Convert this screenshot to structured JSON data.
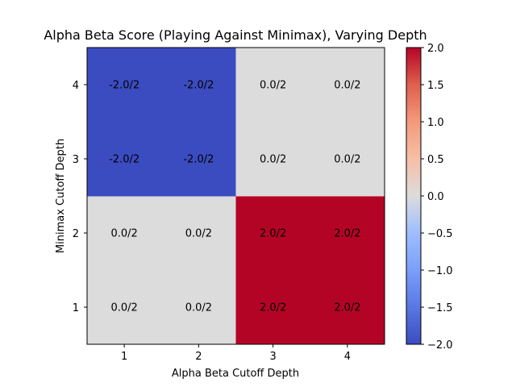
{
  "chart_data": {
    "type": "heatmap",
    "title": "Alpha Beta Score (Playing Against Minimax), Varying Depth",
    "xlabel": "Alpha Beta Cutoff Depth",
    "ylabel": "Minimax Cutoff Depth",
    "x_categories": [
      "1",
      "2",
      "3",
      "4"
    ],
    "y_categories": [
      "1",
      "2",
      "3",
      "4"
    ],
    "values": [
      [
        0.0,
        0.0,
        2.0,
        2.0
      ],
      [
        0.0,
        0.0,
        2.0,
        2.0
      ],
      [
        -2.0,
        -2.0,
        0.0,
        0.0
      ],
      [
        -2.0,
        -2.0,
        0.0,
        0.0
      ]
    ],
    "cell_labels": [
      [
        "0.0/2",
        "0.0/2",
        "2.0/2",
        "2.0/2"
      ],
      [
        "0.0/2",
        "0.0/2",
        "2.0/2",
        "2.0/2"
      ],
      [
        "-2.0/2",
        "-2.0/2",
        "0.0/2",
        "0.0/2"
      ],
      [
        "-2.0/2",
        "-2.0/2",
        "0.0/2",
        "0.0/2"
      ]
    ],
    "colormap": "coolwarm",
    "colors": {
      "low": "#3b4cc0",
      "mid": "#dddcdc",
      "high": "#b40426"
    },
    "vmin": -2.0,
    "vmax": 2.0,
    "colorbar_ticks": [
      2.0,
      1.5,
      1.0,
      0.5,
      0.0,
      -0.5,
      -1.0,
      -1.5,
      -2.0
    ],
    "colorbar_tick_labels": [
      "2.0",
      "1.5",
      "1.0",
      "0.5",
      "0.0",
      "−0.5",
      "−1.0",
      "−1.5",
      "−2.0"
    ],
    "legend": "colorbar-right"
  }
}
